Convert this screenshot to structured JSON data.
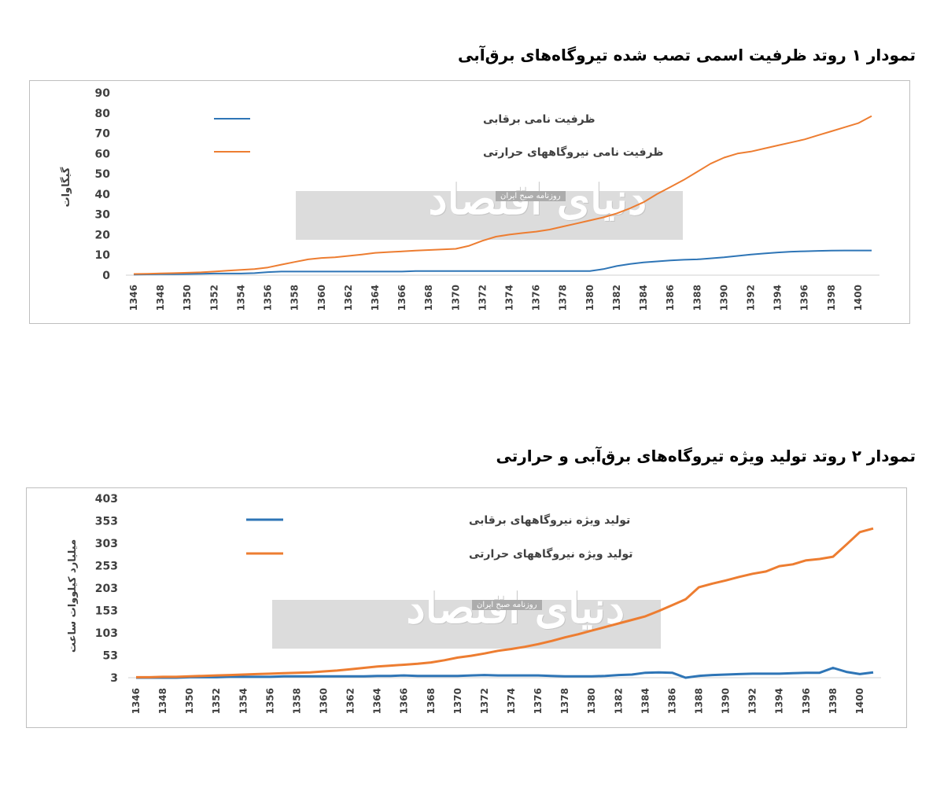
{
  "charts": [
    {
      "title": "تمودار ۱ روتد ظرفیت اسمی تصب شده تیروگاه‌های برق‌آبی",
      "ylabel": "گیگاوات",
      "watermark": {
        "logo": "دنیای اقتصاد",
        "tagline": "روزنامه صبح ایران"
      },
      "legend": [
        {
          "label": "ظرفیت نامی برقابی",
          "color": "#2E75B6"
        },
        {
          "label": "ظرفیت نامی نیروگاههای حرارتی",
          "color": "#ED7D31"
        }
      ]
    },
    {
      "title": "تمودار ۲ روتد تولید ویژه تیروگاه‌های برق‌آبی و حرارتی",
      "ylabel": "میلیارد کیلووات ساعت",
      "watermark": {
        "logo": "دنیای اقتصاد",
        "tagline": "روزنامه صبح ایران"
      },
      "legend": [
        {
          "label": "تولید ویژه نیروگاههای برقابی",
          "color": "#2E75B6"
        },
        {
          "label": "تولید ویژه نیروگاههای حرارتی",
          "color": "#ED7D31"
        }
      ]
    }
  ],
  "chart_data": [
    {
      "type": "line",
      "ylim": [
        0,
        90
      ],
      "yticks": [
        0,
        10,
        20,
        30,
        40,
        50,
        60,
        70,
        80,
        90
      ],
      "x": [
        1346,
        1347,
        1348,
        1349,
        1350,
        1351,
        1352,
        1353,
        1354,
        1355,
        1356,
        1357,
        1358,
        1359,
        1360,
        1361,
        1362,
        1363,
        1364,
        1365,
        1366,
        1367,
        1368,
        1369,
        1370,
        1371,
        1372,
        1373,
        1374,
        1375,
        1376,
        1377,
        1378,
        1379,
        1380,
        1381,
        1382,
        1383,
        1384,
        1385,
        1386,
        1387,
        1388,
        1389,
        1390,
        1391,
        1392,
        1393,
        1394,
        1395,
        1396,
        1397,
        1398,
        1399,
        1400,
        1401
      ],
      "xticks": [
        1346,
        1348,
        1350,
        1352,
        1354,
        1356,
        1358,
        1360,
        1362,
        1364,
        1366,
        1368,
        1370,
        1372,
        1374,
        1376,
        1378,
        1380,
        1382,
        1384,
        1386,
        1388,
        1390,
        1392,
        1394,
        1396,
        1398,
        1400
      ],
      "series": [
        {
          "name": "ظرفیت نامی برقابی",
          "values": [
            0.3,
            0.4,
            0.5,
            0.5,
            0.6,
            0.7,
            0.8,
            0.8,
            0.8,
            1.0,
            1.5,
            1.8,
            1.8,
            1.8,
            1.8,
            1.8,
            1.8,
            1.8,
            1.8,
            1.8,
            1.8,
            2.0,
            2.0,
            2.0,
            2.0,
            2.0,
            2.0,
            2.0,
            2.0,
            2.0,
            2.0,
            2.0,
            2.0,
            2.0,
            2.0,
            3.0,
            4.5,
            5.5,
            6.3,
            6.8,
            7.3,
            7.6,
            7.8,
            8.3,
            8.8,
            9.5,
            10.2,
            10.7,
            11.2,
            11.6,
            11.8,
            12.0,
            12.1,
            12.2,
            12.2,
            12.2
          ]
        },
        {
          "name": "ظرفیت نامی نیروگاههای حرارتی",
          "values": [
            0.6,
            0.7,
            0.9,
            1.0,
            1.2,
            1.4,
            1.8,
            2.2,
            2.6,
            3.0,
            3.8,
            5.2,
            6.5,
            7.8,
            8.5,
            8.8,
            9.5,
            10.2,
            11.0,
            11.4,
            11.7,
            12.1,
            12.4,
            12.7,
            13.0,
            14.5,
            17.0,
            19.0,
            20.0,
            20.8,
            21.5,
            22.5,
            24.0,
            25.5,
            27.0,
            28.5,
            30.5,
            33.0,
            36.0,
            40.0,
            43.5,
            47.0,
            51.0,
            55.0,
            58.0,
            60.0,
            61.0,
            62.5,
            64.0,
            65.5,
            67.0,
            69.0,
            71.0,
            73.0,
            75.0,
            78.5
          ]
        }
      ]
    },
    {
      "type": "line",
      "ylim": [
        3,
        403
      ],
      "yticks": [
        3,
        53,
        103,
        153,
        203,
        253,
        303,
        353,
        403
      ],
      "x": [
        1346,
        1347,
        1348,
        1349,
        1350,
        1351,
        1352,
        1353,
        1354,
        1355,
        1356,
        1357,
        1358,
        1359,
        1360,
        1361,
        1362,
        1363,
        1364,
        1365,
        1366,
        1367,
        1368,
        1369,
        1370,
        1371,
        1372,
        1373,
        1374,
        1375,
        1376,
        1377,
        1378,
        1379,
        1380,
        1381,
        1382,
        1383,
        1384,
        1385,
        1386,
        1387,
        1388,
        1389,
        1390,
        1391,
        1392,
        1393,
        1394,
        1395,
        1396,
        1397,
        1398,
        1399,
        1400,
        1401
      ],
      "xticks": [
        1346,
        1348,
        1350,
        1352,
        1354,
        1356,
        1358,
        1360,
        1362,
        1364,
        1366,
        1368,
        1370,
        1372,
        1374,
        1376,
        1378,
        1380,
        1382,
        1384,
        1386,
        1388,
        1390,
        1392,
        1394,
        1396,
        1398,
        1400
      ],
      "series": [
        {
          "name": "تولید ویژه نیروگاههای برقابی",
          "values": [
            3,
            3,
            3,
            3,
            4,
            4,
            4,
            5,
            5,
            5,
            5,
            6,
            6,
            6,
            6,
            6,
            6,
            6,
            7,
            7,
            8,
            7,
            7,
            7,
            7,
            8,
            9,
            8,
            8,
            8,
            8,
            7,
            6,
            6,
            6,
            7,
            9,
            10,
            14,
            15,
            14,
            3,
            7,
            9,
            10,
            11,
            12,
            12,
            12,
            13,
            14,
            14,
            25,
            16,
            11,
            15
          ]
        },
        {
          "name": "تولید ویژه نیروگاههای حرارتی",
          "values": [
            4,
            4,
            5,
            5,
            6,
            7,
            8,
            9,
            10,
            11,
            12,
            13,
            14,
            15,
            17,
            19,
            22,
            25,
            28,
            30,
            32,
            34,
            37,
            42,
            48,
            52,
            57,
            63,
            67,
            72,
            78,
            85,
            93,
            100,
            108,
            116,
            124,
            132,
            140,
            152,
            165,
            178,
            205,
            213,
            220,
            228,
            235,
            240,
            252,
            256,
            265,
            268,
            273,
            300,
            328,
            336
          ]
        }
      ]
    }
  ]
}
